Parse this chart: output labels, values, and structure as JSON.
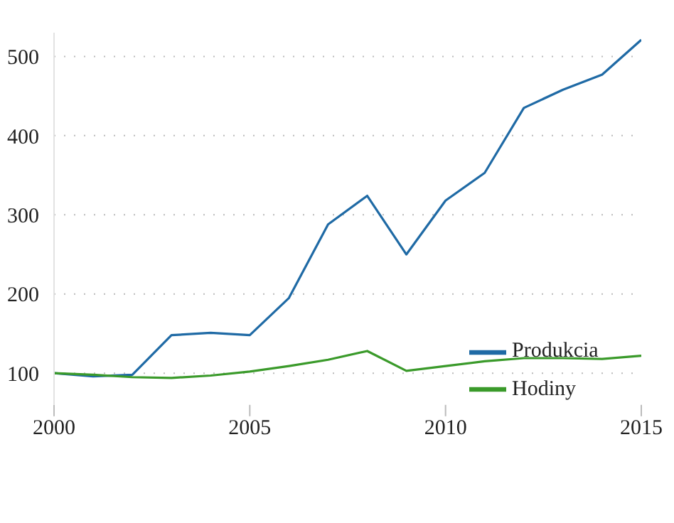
{
  "chart_data": {
    "type": "line",
    "x": [
      2000,
      2001,
      2002,
      2003,
      2004,
      2005,
      2006,
      2007,
      2008,
      2009,
      2010,
      2011,
      2012,
      2013,
      2014,
      2015
    ],
    "series": [
      {
        "name": "Produkcia",
        "color": "#1f6aa5",
        "values": [
          100,
          96,
          98,
          148,
          151,
          148,
          195,
          288,
          324,
          250,
          318,
          353,
          435,
          458,
          477,
          521
        ]
      },
      {
        "name": "Hodiny",
        "color": "#3a9a2a",
        "values": [
          100,
          98,
          95,
          94,
          97,
          102,
          109,
          117,
          128,
          103,
          109,
          115,
          119,
          119,
          118,
          122
        ]
      }
    ],
    "xlim": [
      2000,
      2015
    ],
    "xticks": [
      2000,
      2005,
      2010,
      2015
    ],
    "ylim": [
      60,
      530
    ],
    "yticks": [
      100,
      200,
      300,
      400,
      500
    ],
    "grid": "y",
    "legend": "right",
    "marker": "none",
    "line_style": "solid"
  }
}
